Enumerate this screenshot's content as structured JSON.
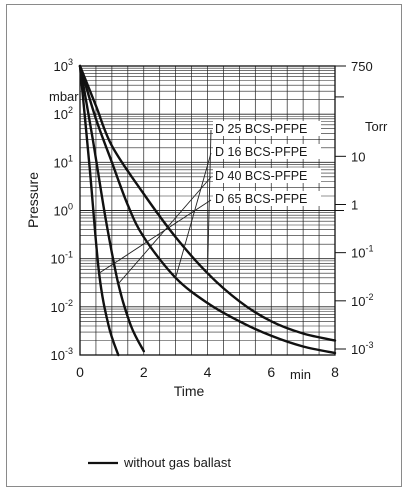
{
  "chart_data": {
    "type": "line",
    "title": "",
    "xlabel": "Time",
    "ylabel": "Pressure",
    "x_unit": "min",
    "y_unit_left": "mbar",
    "y_unit_right": "Torr",
    "x_ticks": [
      "0",
      "2",
      "4",
      "6",
      "8"
    ],
    "xlim": [
      0,
      8
    ],
    "ylim": [
      0.001,
      1000
    ],
    "y_scale": "log",
    "y_ticks_left": [
      {
        "value": 1000,
        "base": "10",
        "exp": "3"
      },
      {
        "value": 100,
        "base": "10",
        "exp": "2"
      },
      {
        "value": 10,
        "base": "10",
        "exp": "1"
      },
      {
        "value": 1,
        "base": "10",
        "exp": "0"
      },
      {
        "value": 0.1,
        "base": "10",
        "exp": "-1"
      },
      {
        "value": 0.01,
        "base": "10",
        "exp": "-2"
      },
      {
        "value": 0.001,
        "base": "10",
        "exp": "-3"
      }
    ],
    "y_ticks_right": [
      {
        "value_mbar": 1000,
        "base": "750",
        "exp": ""
      },
      {
        "value_mbar": 13.33,
        "base": "10",
        "exp": ""
      },
      {
        "value_mbar": 1.333,
        "base": "1",
        "exp": ""
      },
      {
        "value_mbar": 0.1333,
        "base": "10",
        "exp": "-1"
      },
      {
        "value_mbar": 0.01333,
        "base": "10",
        "exp": "-2"
      },
      {
        "value_mbar": 0.001333,
        "base": "10",
        "exp": "-3"
      }
    ],
    "grid": true,
    "series": [
      {
        "name": "D 25 BCS-PFPE",
        "x": [
          0,
          0.5,
          1,
          2,
          3,
          4,
          5,
          6,
          7,
          8
        ],
        "y": [
          1000,
          150,
          22,
          2.2,
          0.28,
          0.05,
          0.013,
          0.005,
          0.0028,
          0.002
        ]
      },
      {
        "name": "D 16 BCS-PFPE",
        "x": [
          0,
          0.5,
          1,
          1.5,
          2,
          3,
          4,
          5,
          6,
          7,
          8
        ],
        "y": [
          1000,
          80,
          10,
          1.3,
          0.28,
          0.04,
          0.012,
          0.005,
          0.0025,
          0.0015,
          0.0011
        ]
      },
      {
        "name": "D 40 BCS-PFPE",
        "x": [
          0,
          0.4,
          0.8,
          1.2,
          1.6,
          2
        ],
        "y": [
          1000,
          30,
          0.7,
          0.03,
          0.004,
          0.0012
        ]
      },
      {
        "name": "D 65 BCS-PFPE",
        "x": [
          0,
          0.3,
          0.6,
          0.9,
          1.2
        ],
        "y": [
          1000,
          8,
          0.05,
          0.004,
          0.001
        ]
      }
    ],
    "legend": {
      "label": "without gas ballast",
      "position": "bottom-left"
    }
  }
}
